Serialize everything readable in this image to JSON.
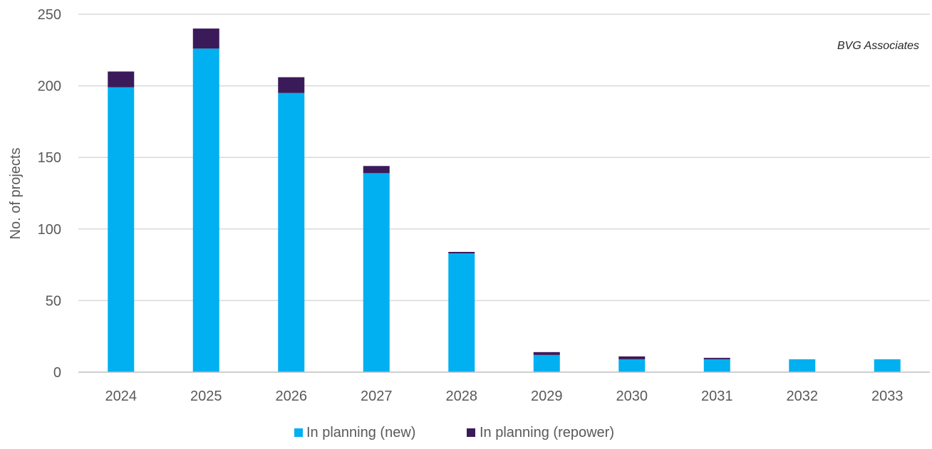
{
  "chart_data": {
    "type": "bar",
    "stacked": true,
    "categories": [
      "2024",
      "2025",
      "2026",
      "2027",
      "2028",
      "2029",
      "2030",
      "2031",
      "2032",
      "2033"
    ],
    "series": [
      {
        "name": "In planning (new)",
        "color": "#00B0F0",
        "values": [
          199,
          226,
          195,
          139,
          83,
          12,
          9,
          9,
          9,
          9
        ]
      },
      {
        "name": "In planning (repower)",
        "color": "#3B1A5A",
        "values": [
          11,
          14,
          11,
          5,
          1,
          2,
          2,
          1,
          0,
          0
        ]
      }
    ],
    "title": "",
    "xlabel": "",
    "ylabel": "No. of projects",
    "ylim": [
      0,
      250
    ],
    "yticks": [
      "0",
      "50",
      "100",
      "150",
      "200",
      "250"
    ],
    "grid": true,
    "legend_position": "bottom",
    "annotation": "BVG Associates",
    "gridline_color": "#D9D9D9",
    "axis_color": "#BFBFBF"
  }
}
